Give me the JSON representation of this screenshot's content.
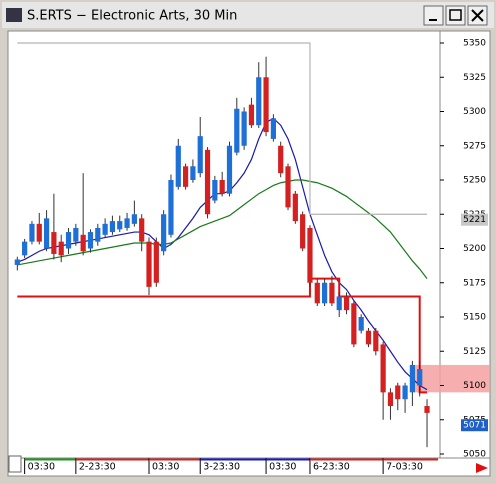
{
  "window_title": "S.ERTS − Electronic Arts, 30 Min",
  "chart_data": {
    "type": "candlestick",
    "open": [
      5188,
      5195,
      5205,
      5218,
      5200,
      5212,
      5205,
      5200,
      5205,
      5210,
      5200,
      5205,
      5210,
      5212,
      5214,
      5215,
      5218,
      5222,
      5205,
      5205,
      5198,
      5210,
      5245,
      5260,
      5250,
      5255,
      5272,
      5235,
      5250,
      5240,
      5270,
      5275,
      5305,
      5290,
      5325,
      5280,
      5275,
      5260,
      5240,
      5225,
      5215,
      5175,
      5160,
      5175,
      5155,
      5165,
      5160,
      5140,
      5140,
      5140,
      5130,
      5095,
      5100,
      5090,
      5095,
      5100,
      5085
    ],
    "high": [
      5194,
      5207,
      5220,
      5226,
      5228,
      5240,
      5210,
      5215,
      5218,
      5255,
      5214,
      5218,
      5222,
      5224,
      5224,
      5226,
      5235,
      5225,
      5208,
      5208,
      5228,
      5254,
      5280,
      5262,
      5265,
      5296,
      5274,
      5253,
      5256,
      5278,
      5310,
      5303,
      5310,
      5336,
      5340,
      5298,
      5278,
      5262,
      5242,
      5227,
      5217,
      5178,
      5178,
      5180,
      5168,
      5168,
      5162,
      5152,
      5142,
      5142,
      5132,
      5098,
      5102,
      5102,
      5118,
      5118,
      5090
    ],
    "low": [
      5184,
      5193,
      5203,
      5203,
      5198,
      5192,
      5190,
      5196,
      5202,
      5195,
      5197,
      5202,
      5208,
      5210,
      5212,
      5213,
      5216,
      5198,
      5166,
      5172,
      5195,
      5208,
      5243,
      5243,
      5248,
      5252,
      5222,
      5233,
      5238,
      5238,
      5268,
      5272,
      5288,
      5288,
      5282,
      5278,
      5252,
      5228,
      5218,
      5198,
      5172,
      5158,
      5158,
      5158,
      5150,
      5152,
      5128,
      5138,
      5128,
      5122,
      5075,
      5075,
      5082,
      5080,
      5085,
      5092,
      5055
    ],
    "close": [
      5192,
      5205,
      5218,
      5205,
      5222,
      5196,
      5195,
      5212,
      5215,
      5198,
      5212,
      5215,
      5218,
      5220,
      5220,
      5222,
      5225,
      5205,
      5172,
      5175,
      5225,
      5250,
      5275,
      5245,
      5260,
      5282,
      5225,
      5250,
      5240,
      5275,
      5302,
      5300,
      5290,
      5325,
      5285,
      5295,
      5255,
      5230,
      5220,
      5200,
      5175,
      5160,
      5175,
      5160,
      5165,
      5155,
      5130,
      5150,
      5130,
      5125,
      5095,
      5085,
      5090,
      5100,
      5115,
      5112,
      5080
    ],
    "up_color": "#1e6fd6",
    "down_color": "#d42020",
    "lines": [
      {
        "color": "#1a1aa8",
        "values": [
          5190,
          5192,
          5195,
          5198,
          5200,
          5201,
          5202,
          5203,
          5204,
          5205,
          5206,
          5207,
          5208,
          5209,
          5210,
          5211,
          5212,
          5212,
          5210,
          5205,
          5200,
          5203,
          5208,
          5215,
          5222,
          5230,
          5235,
          5240,
          5240,
          5242,
          5248,
          5255,
          5265,
          5280,
          5292,
          5295,
          5290,
          5280,
          5265,
          5245,
          5225,
          5210,
          5195,
          5183,
          5175,
          5170,
          5162,
          5155,
          5147,
          5140,
          5133,
          5125,
          5117,
          5110,
          5105,
          5100,
          5097
        ]
      },
      {
        "color": "#1a7a1a",
        "values": [
          5188,
          5189,
          5190,
          5191,
          5192,
          5193,
          5194,
          5195,
          5196,
          5197,
          5198,
          5199,
          5200,
          5201,
          5202,
          5203,
          5204,
          5204,
          5204,
          5203,
          5203,
          5204,
          5207,
          5210,
          5213,
          5216,
          5218,
          5220,
          5222,
          5224,
          5228,
          5232,
          5236,
          5240,
          5243,
          5246,
          5248,
          5249,
          5250,
          5250,
          5249,
          5248,
          5246,
          5244,
          5241,
          5238,
          5234,
          5230,
          5226,
          5222,
          5217,
          5212,
          5205,
          5198,
          5191,
          5185,
          5178
        ]
      },
      {
        "color": "#b4b4b4",
        "values": [
          5350,
          5350,
          5350,
          5350,
          5350,
          5350,
          5350,
          5350,
          5350,
          5350,
          5350,
          5350,
          5350,
          5350,
          5350,
          5350,
          5350,
          5350,
          5350,
          5350,
          5350,
          5350,
          5350,
          5350,
          5350,
          5350,
          5350,
          5350,
          5350,
          5350,
          5350,
          5350,
          5350,
          5350,
          5350,
          5350,
          5350,
          5350,
          5350,
          5350,
          5225,
          5225,
          5225,
          5225,
          5225,
          5225,
          5225,
          5225,
          5225,
          5225,
          5225,
          5225,
          5225,
          5225,
          5225,
          5225,
          5225
        ]
      },
      {
        "color": "#e01010",
        "values": [
          5165,
          5165,
          5165,
          5165,
          5165,
          5165,
          5165,
          5165,
          5165,
          5165,
          5165,
          5165,
          5165,
          5165,
          5165,
          5165,
          5165,
          5165,
          5165,
          5165,
          5165,
          5165,
          5165,
          5165,
          5165,
          5165,
          5165,
          5165,
          5165,
          5165,
          5165,
          5165,
          5165,
          5165,
          5165,
          5165,
          5165,
          5165,
          5165,
          5165,
          5178,
          5178,
          5178,
          5178,
          5165,
          5165,
          5165,
          5165,
          5165,
          5165,
          5165,
          5165,
          5165,
          5165,
          5165,
          5095,
          5095
        ]
      }
    ],
    "zone": [
      5095,
      5115
    ],
    "zone_color": "#f4a0a0",
    "markers": [
      {
        "value": 5221,
        "color": "#c8c8c8"
      },
      {
        "value": 5071,
        "color": "#1e5fc8"
      }
    ],
    "ylim": [
      5050,
      5350
    ],
    "yticks": [
      5050,
      5075,
      5100,
      5125,
      5150,
      5175,
      5200,
      5225,
      5250,
      5275,
      5300,
      5325,
      5350
    ],
    "xlim": [
      -1,
      57.5
    ],
    "xticks": [
      {
        "value": 1,
        "label": "03:30"
      },
      {
        "value": 8,
        "label": "2-23:30"
      },
      {
        "value": 18,
        "label": "03:30"
      },
      {
        "value": 25,
        "label": "3-23:30"
      },
      {
        "value": 34,
        "label": "03:30"
      },
      {
        "value": 40,
        "label": "6-23:30"
      },
      {
        "value": 50,
        "label": "7-03:30"
      }
    ]
  }
}
